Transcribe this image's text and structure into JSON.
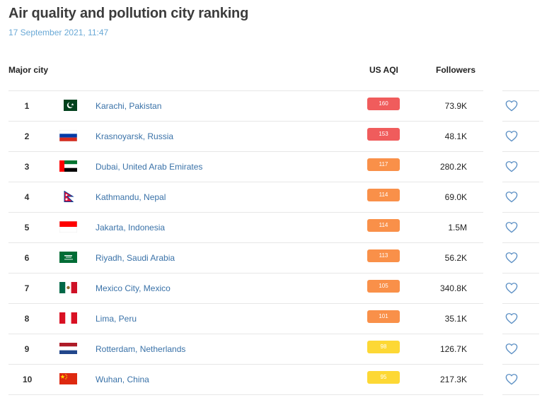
{
  "page": {
    "title": "Air quality and pollution city ranking",
    "timestamp": "17 September 2021, 11:47"
  },
  "table": {
    "headers": {
      "city": "Major city",
      "aqi": "US AQI",
      "followers": "Followers"
    },
    "rows": [
      {
        "rank": "1",
        "flag": "pakistan-flag-icon",
        "city": "Karachi, Pakistan",
        "aqi": "160",
        "aqi_color": "#f05c5c",
        "followers": "73.9K"
      },
      {
        "rank": "2",
        "flag": "russia-flag-icon",
        "city": "Krasnoyarsk, Russia",
        "aqi": "153",
        "aqi_color": "#f05c5c",
        "followers": "48.1K"
      },
      {
        "rank": "3",
        "flag": "uae-flag-icon",
        "city": "Dubai, United Arab Emirates",
        "aqi": "117",
        "aqi_color": "#f99049",
        "followers": "280.2K"
      },
      {
        "rank": "4",
        "flag": "nepal-flag-icon",
        "city": "Kathmandu, Nepal",
        "aqi": "114",
        "aqi_color": "#f99049",
        "followers": "69.0K"
      },
      {
        "rank": "5",
        "flag": "indonesia-flag-icon",
        "city": "Jakarta, Indonesia",
        "aqi": "114",
        "aqi_color": "#f99049",
        "followers": "1.5M"
      },
      {
        "rank": "6",
        "flag": "saudi-arabia-flag-icon",
        "city": "Riyadh, Saudi Arabia",
        "aqi": "113",
        "aqi_color": "#f99049",
        "followers": "56.2K"
      },
      {
        "rank": "7",
        "flag": "mexico-flag-icon",
        "city": "Mexico City, Mexico",
        "aqi": "105",
        "aqi_color": "#f99049",
        "followers": "340.8K"
      },
      {
        "rank": "8",
        "flag": "peru-flag-icon",
        "city": "Lima, Peru",
        "aqi": "101",
        "aqi_color": "#f99049",
        "followers": "35.1K"
      },
      {
        "rank": "9",
        "flag": "netherlands-flag-icon",
        "city": "Rotterdam, Netherlands",
        "aqi": "98",
        "aqi_color": "#fdd835",
        "followers": "126.7K"
      },
      {
        "rank": "10",
        "flag": "china-flag-icon",
        "city": "Wuhan, China",
        "aqi": "95",
        "aqi_color": "#fdd835",
        "followers": "217.3K"
      }
    ]
  },
  "icons": {
    "follow": "heart-outline-icon"
  },
  "colors": {
    "heart": "#5b8fc4",
    "link": "#3a72a8",
    "timestamp": "#6aa9d6"
  }
}
